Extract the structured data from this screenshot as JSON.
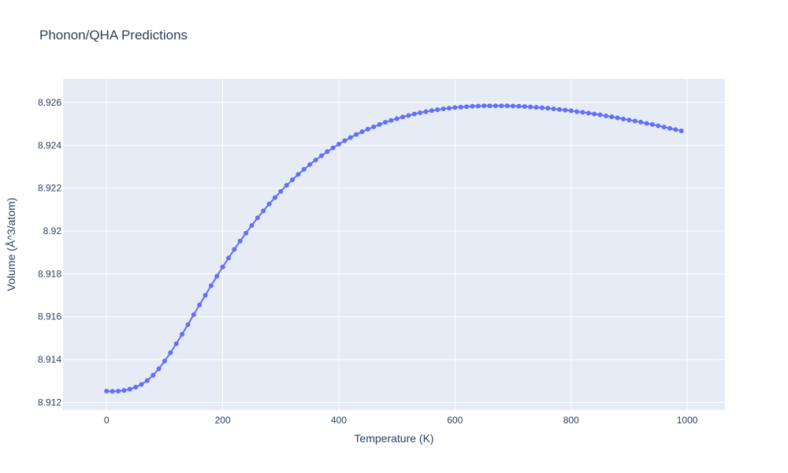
{
  "chart_data": {
    "type": "line",
    "title": "Phonon/QHA Predictions",
    "xlabel": "Temperature (K)",
    "ylabel": "Volume (Å^3/atom)",
    "xlim": [
      -75,
      1065
    ],
    "ylim": [
      8.91165,
      8.9271
    ],
    "x_ticks": [
      0,
      200,
      400,
      600,
      800,
      1000
    ],
    "x_tick_labels": [
      "0",
      "200",
      "400",
      "600",
      "800",
      "1000"
    ],
    "y_ticks": [
      8.912,
      8.914,
      8.916,
      8.918,
      8.92,
      8.922,
      8.924,
      8.926
    ],
    "y_tick_labels": [
      "8.912",
      "8.914",
      "8.916",
      "8.918",
      "8.92",
      "8.922",
      "8.924",
      "8.926"
    ],
    "grid": true,
    "legend": "none",
    "colors": {
      "line": "#636efa",
      "plot_bg": "#e5ecf6",
      "grid": "#ffffff",
      "text": "#2a3f5f"
    },
    "series": [
      {
        "mode": "lines+markers",
        "x": [
          0,
          10,
          20,
          30,
          40,
          50,
          60,
          70,
          80,
          90,
          100,
          110,
          120,
          130,
          140,
          150,
          160,
          170,
          180,
          190,
          200,
          210,
          220,
          230,
          240,
          250,
          260,
          270,
          280,
          290,
          300,
          310,
          320,
          330,
          340,
          350,
          360,
          370,
          380,
          390,
          400,
          410,
          420,
          430,
          440,
          450,
          460,
          470,
          480,
          490,
          500,
          510,
          520,
          530,
          540,
          550,
          560,
          570,
          580,
          590,
          600,
          610,
          620,
          630,
          640,
          650,
          660,
          670,
          680,
          690,
          700,
          710,
          720,
          730,
          740,
          750,
          760,
          770,
          780,
          790,
          800,
          810,
          820,
          830,
          840,
          850,
          860,
          870,
          880,
          890,
          900,
          910,
          920,
          930,
          940,
          950,
          960,
          970,
          980,
          990
        ],
        "y": [
          8.91253,
          8.91252,
          8.91253,
          8.91256,
          8.91262,
          8.91271,
          8.91284,
          8.91302,
          8.91327,
          8.91357,
          8.91393,
          8.91432,
          8.91474,
          8.91518,
          8.91563,
          8.91609,
          8.91655,
          8.917,
          8.91745,
          8.91789,
          8.91832,
          8.91874,
          8.91914,
          8.91953,
          8.9199,
          8.92026,
          8.92061,
          8.92094,
          8.92126,
          8.92156,
          8.92185,
          8.92213,
          8.92239,
          8.92264,
          8.92288,
          8.9231,
          8.92331,
          8.92351,
          8.9237,
          8.92388,
          8.92405,
          8.92421,
          8.92436,
          8.9245,
          8.92463,
          8.92475,
          8.92486,
          8.92497,
          8.92507,
          8.92516,
          8.92524,
          8.92532,
          8.92539,
          8.92546,
          8.92552,
          8.92557,
          8.92562,
          8.92566,
          8.9257,
          8.92573,
          8.92576,
          8.92578,
          8.9258,
          8.92582,
          8.92583,
          8.92584,
          8.92584,
          8.92584,
          8.92584,
          8.92584,
          8.92583,
          8.92582,
          8.92581,
          8.92579,
          8.92577,
          8.92575,
          8.92573,
          8.9257,
          8.92567,
          8.92564,
          8.92561,
          8.92557,
          8.92554,
          8.9255,
          8.92546,
          8.92542,
          8.92537,
          8.92533,
          8.92528,
          8.92523,
          8.92518,
          8.92513,
          8.92508,
          8.92502,
          8.92497,
          8.92491,
          8.92485,
          8.92479,
          8.92473,
          8.92467
        ]
      }
    ]
  }
}
